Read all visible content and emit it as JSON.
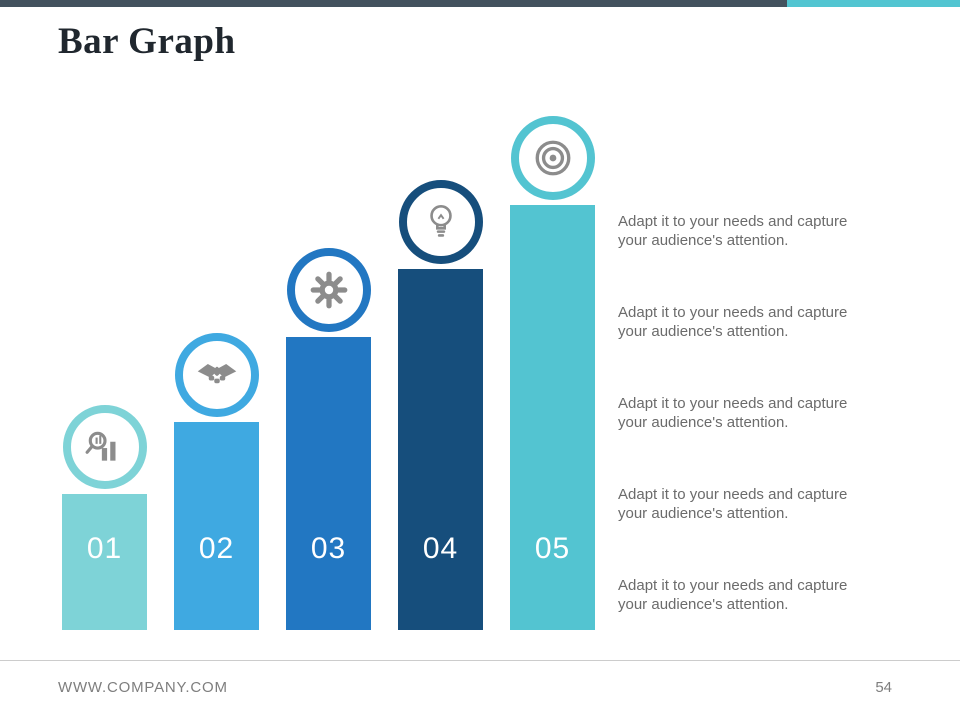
{
  "slide": {
    "title": "Bar Graph",
    "footer": {
      "website": "WWW.COMPANY.COM",
      "page_number": "54"
    }
  },
  "colors": {
    "topbar_left": "#43525e",
    "topbar_right": "#52c5d1",
    "icon_gray": "#8c8c8c",
    "caption_gray": "#6b6b6b"
  },
  "descriptions": [
    "Adapt it to your needs and capture your audience's attention.",
    "Adapt it to your needs and capture your audience's attention.",
    "Adapt it to your needs and capture your audience's attention.",
    "Adapt it to your needs and capture your audience's attention.",
    "Adapt it to your needs and capture your audience's attention."
  ],
  "icons": [
    "analytics-icon",
    "handshake-icon",
    "gear-icon",
    "bulb-icon",
    "target-icon"
  ],
  "chart_data": {
    "type": "bar",
    "title": "Bar Graph",
    "categories": [
      "01",
      "02",
      "03",
      "04",
      "05"
    ],
    "values": [
      32,
      49,
      69,
      85,
      100
    ],
    "bar_colors": [
      "#7ed3d7",
      "#3fa9e1",
      "#2277c2",
      "#164e7c",
      "#53c4d1"
    ],
    "xlabel": "",
    "ylabel": "",
    "ylim": [
      0,
      100
    ],
    "grid": false,
    "legend": false
  }
}
